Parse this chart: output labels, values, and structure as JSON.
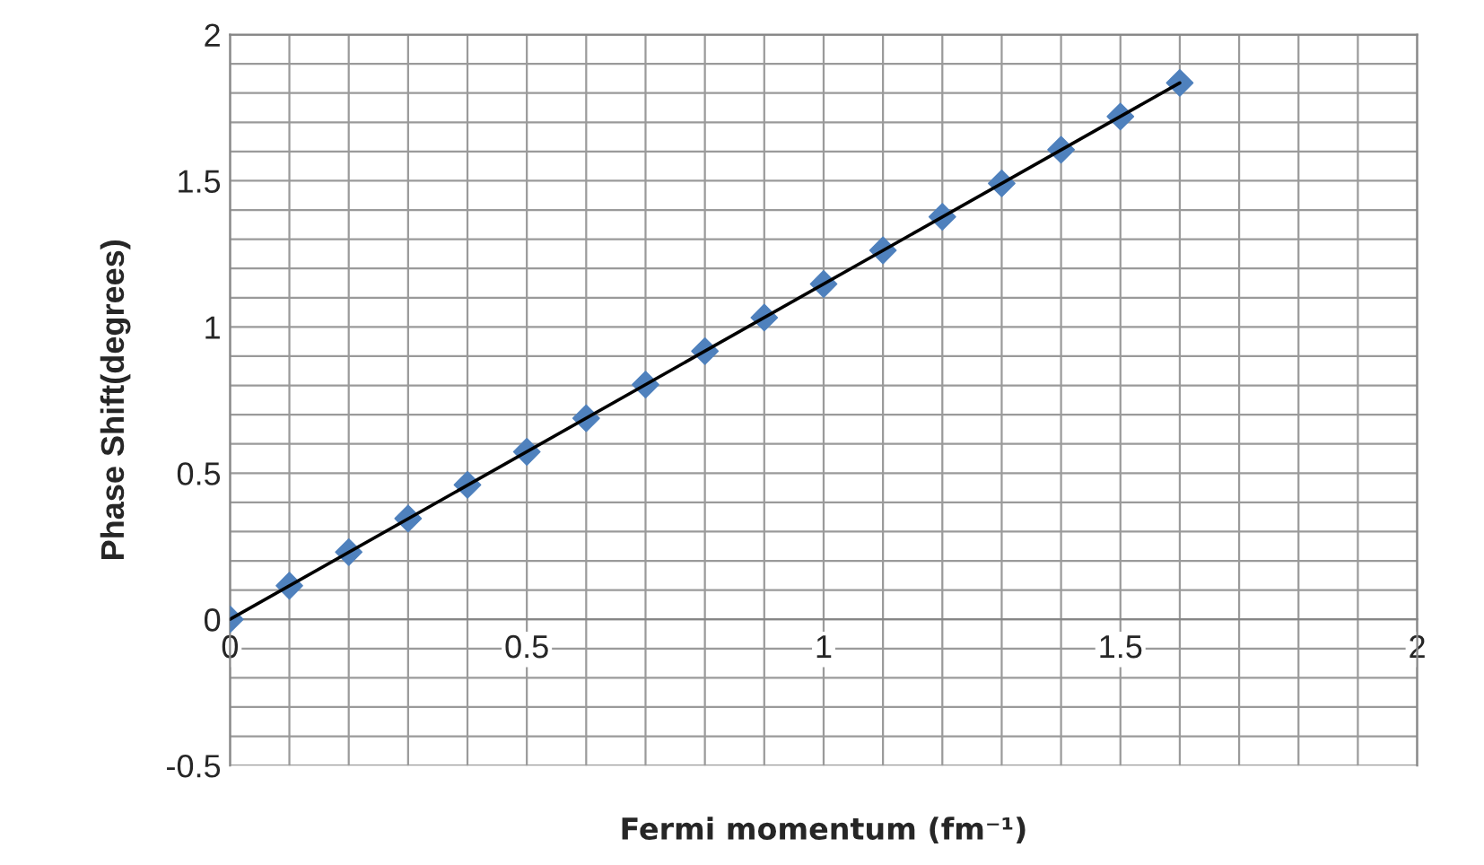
{
  "chart_data": {
    "type": "scatter",
    "xlabel": "Fermi momentum (fm⁻¹)",
    "ylabel": "Phase Shift(degrees)",
    "xlim": [
      0,
      2
    ],
    "xticks": [
      0,
      0.5,
      1,
      1.5,
      2
    ],
    "ylim": [
      -0.5,
      2
    ],
    "yticks": [
      -0.5,
      0,
      0.5,
      1,
      1.5,
      2
    ],
    "grid": true,
    "marker": "diamond",
    "series": [
      {
        "color": "#4f81bd",
        "x": [
          0,
          0.1,
          0.2,
          0.3,
          0.4,
          0.5,
          0.6,
          0.7,
          0.8,
          0.9,
          1.0,
          1.1,
          1.2,
          1.3,
          1.4,
          1.5,
          1.6
        ],
        "values": [
          0,
          0.115,
          0.23,
          0.345,
          0.46,
          0.573,
          0.688,
          0.803,
          0.917,
          1.032,
          1.147,
          1.262,
          1.377,
          1.491,
          1.606,
          1.72,
          1.835
        ]
      },
      {
        "type": "line",
        "color": "#000000",
        "marker": "none",
        "x": [
          0,
          1.6
        ],
        "values": [
          0,
          1.835
        ]
      }
    ]
  }
}
